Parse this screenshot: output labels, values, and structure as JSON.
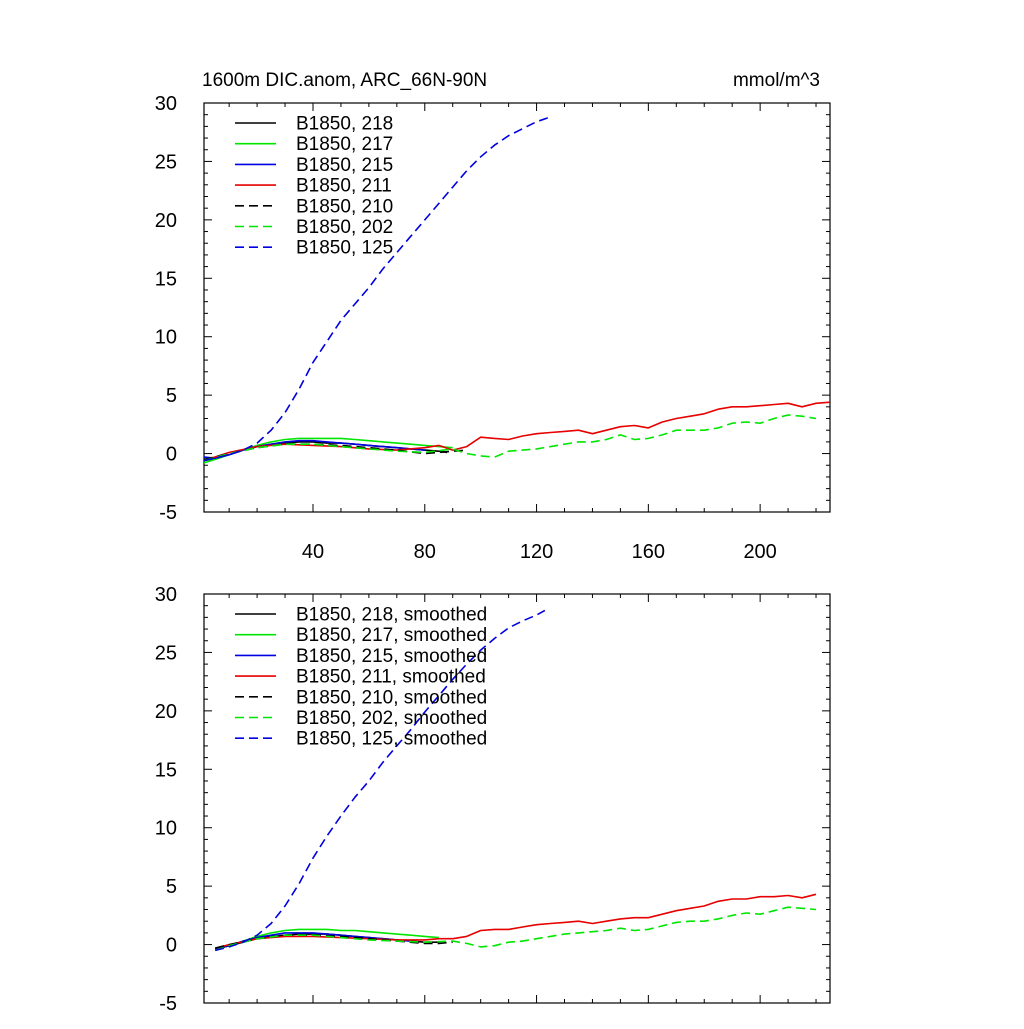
{
  "header": {
    "title": "1600m DIC.anom, ARC_66N-90N",
    "units": "mmol/m^3"
  },
  "styles": {
    "colors": {
      "black": "#000000",
      "green": "#00e600",
      "blue": "#0000e0",
      "red": "#e60000"
    }
  },
  "chart_data": [
    {
      "type": "line",
      "panel": "top",
      "xlim": [
        1,
        225
      ],
      "ylim": [
        -5,
        30
      ],
      "yticks": [
        -5,
        0,
        5,
        10,
        15,
        20,
        25,
        30
      ],
      "ytick_labels": [
        "-5",
        "0",
        "5",
        "10",
        "15",
        "20",
        "25",
        "30"
      ],
      "xticks": [
        40,
        80,
        120,
        160,
        200
      ],
      "xtick_labels": [
        "40",
        "80",
        "120",
        "160",
        "200"
      ],
      "legend_position": "top-left",
      "series": [
        {
          "name": "B1850, 218",
          "color": "#000000",
          "dash": "solid",
          "x": [
            1,
            5,
            10,
            15,
            20,
            25,
            30,
            35,
            40,
            45,
            50,
            55,
            60,
            65,
            70,
            75,
            80,
            85,
            88
          ],
          "y": [
            -0.6,
            -0.4,
            -0.1,
            0.3,
            0.6,
            0.8,
            0.9,
            1.0,
            1.0,
            0.9,
            0.9,
            0.8,
            0.7,
            0.6,
            0.5,
            0.4,
            0.3,
            0.2,
            0.1
          ]
        },
        {
          "name": "B1850, 217",
          "color": "#00e600",
          "dash": "solid",
          "x": [
            1,
            5,
            10,
            15,
            20,
            25,
            30,
            35,
            40,
            45,
            50,
            55,
            60,
            65,
            70,
            75,
            80,
            85,
            90
          ],
          "y": [
            -0.8,
            -0.5,
            -0.1,
            0.3,
            0.7,
            1.0,
            1.2,
            1.3,
            1.3,
            1.3,
            1.3,
            1.2,
            1.1,
            1.0,
            0.9,
            0.8,
            0.7,
            0.6,
            0.5
          ]
        },
        {
          "name": "B1850, 215",
          "color": "#0000e0",
          "dash": "solid",
          "x": [
            1,
            5,
            10,
            15,
            20,
            25,
            30,
            35,
            40,
            45,
            50,
            55,
            60,
            65,
            70,
            75,
            80
          ],
          "y": [
            -0.3,
            -0.4,
            -0.1,
            0.3,
            0.6,
            0.8,
            1.0,
            1.1,
            1.1,
            1.0,
            0.9,
            0.8,
            0.7,
            0.6,
            0.5,
            0.4,
            0.3
          ]
        },
        {
          "name": "B1850, 211",
          "color": "#e60000",
          "dash": "solid",
          "x": [
            1,
            10,
            20,
            30,
            40,
            50,
            60,
            70,
            80,
            85,
            90,
            95,
            100,
            105,
            110,
            115,
            120,
            125,
            130,
            135,
            140,
            145,
            150,
            155,
            160,
            165,
            170,
            175,
            180,
            185,
            190,
            195,
            200,
            205,
            210,
            215,
            220,
            225
          ],
          "y": [
            -0.6,
            0.1,
            0.6,
            0.8,
            0.7,
            0.6,
            0.4,
            0.3,
            0.5,
            0.7,
            0.3,
            0.6,
            1.4,
            1.3,
            1.2,
            1.5,
            1.7,
            1.8,
            1.9,
            2.0,
            1.7,
            2.0,
            2.3,
            2.4,
            2.2,
            2.7,
            3.0,
            3.2,
            3.4,
            3.8,
            4.0,
            4.0,
            4.1,
            4.2,
            4.3,
            4.0,
            4.3,
            4.4
          ]
        },
        {
          "name": "B1850, 210",
          "color": "#000000",
          "dash": "dashed",
          "x": [
            1,
            10,
            20,
            30,
            40,
            50,
            60,
            70,
            80,
            85,
            90,
            95
          ],
          "y": [
            -0.5,
            0.0,
            0.5,
            0.8,
            0.8,
            0.7,
            0.5,
            0.3,
            0.0,
            0.1,
            0.2,
            0.3
          ]
        },
        {
          "name": "B1850, 202",
          "color": "#00e600",
          "dash": "dashed",
          "x": [
            1,
            10,
            20,
            30,
            40,
            50,
            60,
            70,
            80,
            90,
            95,
            100,
            105,
            110,
            115,
            120,
            125,
            130,
            135,
            140,
            145,
            150,
            155,
            160,
            165,
            170,
            175,
            180,
            185,
            190,
            195,
            200,
            205,
            210,
            215,
            220
          ],
          "y": [
            -0.6,
            0.0,
            0.5,
            0.8,
            0.8,
            0.6,
            0.4,
            0.2,
            0.1,
            0.4,
            0.0,
            -0.2,
            -0.3,
            0.2,
            0.3,
            0.4,
            0.6,
            0.8,
            1.0,
            1.0,
            1.2,
            1.6,
            1.2,
            1.3,
            1.6,
            2.0,
            2.0,
            2.0,
            2.2,
            2.6,
            2.7,
            2.6,
            3.0,
            3.3,
            3.2,
            3.0
          ]
        },
        {
          "name": "B1850, 125",
          "color": "#0000e0",
          "dash": "dashed",
          "x": [
            1,
            5,
            10,
            15,
            20,
            25,
            30,
            35,
            40,
            45,
            50,
            55,
            60,
            65,
            70,
            75,
            80,
            85,
            90,
            95,
            100,
            105,
            110,
            115,
            120,
            125
          ],
          "y": [
            -0.6,
            -0.4,
            -0.1,
            0.3,
            0.9,
            2.0,
            3.5,
            5.5,
            7.8,
            9.6,
            11.4,
            12.8,
            14.2,
            15.8,
            17.2,
            18.6,
            20.0,
            21.4,
            22.8,
            24.2,
            25.4,
            26.4,
            27.2,
            27.8,
            28.4,
            28.8
          ]
        }
      ]
    },
    {
      "type": "line",
      "panel": "bottom",
      "xlim": [
        1,
        225
      ],
      "ylim": [
        -5,
        30
      ],
      "yticks": [
        -5,
        0,
        5,
        10,
        15,
        20,
        25,
        30
      ],
      "ytick_labels": [
        "-5",
        "0",
        "5",
        "10",
        "15",
        "20",
        "25",
        "30"
      ],
      "xticks": [
        40,
        80,
        120,
        160,
        200
      ],
      "legend_position": "top-left",
      "series": [
        {
          "name": "B1850, 218, smoothed",
          "color": "#000000",
          "dash": "solid",
          "x": [
            5,
            10,
            15,
            20,
            25,
            30,
            35,
            40,
            45,
            50,
            55,
            60,
            65,
            70,
            75,
            80,
            85
          ],
          "y": [
            -0.4,
            -0.1,
            0.2,
            0.5,
            0.7,
            0.8,
            0.9,
            0.9,
            0.9,
            0.8,
            0.7,
            0.6,
            0.5,
            0.4,
            0.3,
            0.2,
            0.2
          ]
        },
        {
          "name": "B1850, 217, smoothed",
          "color": "#00e600",
          "dash": "solid",
          "x": [
            5,
            10,
            15,
            20,
            25,
            30,
            35,
            40,
            45,
            50,
            55,
            60,
            65,
            70,
            75,
            80,
            85
          ],
          "y": [
            -0.4,
            -0.1,
            0.3,
            0.7,
            1.0,
            1.2,
            1.3,
            1.3,
            1.3,
            1.2,
            1.2,
            1.1,
            1.0,
            0.9,
            0.8,
            0.7,
            0.6
          ]
        },
        {
          "name": "B1850, 215, smoothed",
          "color": "#0000e0",
          "dash": "solid",
          "x": [
            5,
            10,
            15,
            20,
            25,
            30,
            35,
            40,
            45,
            50,
            55,
            60,
            65,
            70,
            75
          ],
          "y": [
            -0.4,
            -0.1,
            0.3,
            0.6,
            0.8,
            1.0,
            1.0,
            1.0,
            0.9,
            0.8,
            0.7,
            0.6,
            0.5,
            0.4,
            0.3
          ]
        },
        {
          "name": "B1850, 211, smoothed",
          "color": "#e60000",
          "dash": "solid",
          "x": [
            5,
            10,
            20,
            30,
            40,
            50,
            60,
            70,
            80,
            85,
            90,
            95,
            100,
            105,
            110,
            115,
            120,
            125,
            130,
            135,
            140,
            145,
            150,
            155,
            160,
            165,
            170,
            175,
            180,
            185,
            190,
            195,
            200,
            205,
            210,
            215,
            220
          ],
          "y": [
            -0.3,
            0.0,
            0.5,
            0.7,
            0.7,
            0.6,
            0.5,
            0.4,
            0.4,
            0.5,
            0.5,
            0.7,
            1.2,
            1.3,
            1.3,
            1.5,
            1.7,
            1.8,
            1.9,
            2.0,
            1.8,
            2.0,
            2.2,
            2.3,
            2.3,
            2.6,
            2.9,
            3.1,
            3.3,
            3.7,
            3.9,
            3.9,
            4.1,
            4.1,
            4.2,
            4.0,
            4.3
          ]
        },
        {
          "name": "B1850, 210, smoothed",
          "color": "#000000",
          "dash": "dashed",
          "x": [
            5,
            10,
            20,
            30,
            40,
            50,
            60,
            70,
            80,
            85,
            90
          ],
          "y": [
            -0.3,
            0.0,
            0.5,
            0.8,
            0.8,
            0.7,
            0.5,
            0.3,
            0.1,
            0.1,
            0.2
          ]
        },
        {
          "name": "B1850, 202, smoothed",
          "color": "#00e600",
          "dash": "dashed",
          "x": [
            5,
            10,
            20,
            30,
            40,
            50,
            60,
            70,
            80,
            90,
            95,
            100,
            105,
            110,
            115,
            120,
            125,
            130,
            135,
            140,
            145,
            150,
            155,
            160,
            165,
            170,
            175,
            180,
            185,
            190,
            195,
            200,
            205,
            210,
            215,
            220
          ],
          "y": [
            -0.5,
            -0.1,
            0.5,
            0.8,
            0.8,
            0.6,
            0.4,
            0.3,
            0.2,
            0.3,
            0.1,
            -0.2,
            -0.1,
            0.2,
            0.3,
            0.5,
            0.7,
            0.9,
            1.0,
            1.1,
            1.2,
            1.4,
            1.2,
            1.3,
            1.6,
            1.9,
            2.0,
            2.0,
            2.2,
            2.5,
            2.7,
            2.6,
            2.9,
            3.2,
            3.1,
            3.0
          ]
        },
        {
          "name": "B1850, 125, smoothed",
          "color": "#0000e0",
          "dash": "dashed",
          "x": [
            5,
            10,
            15,
            20,
            25,
            30,
            35,
            40,
            45,
            50,
            55,
            60,
            65,
            70,
            75,
            80,
            85,
            90,
            95,
            100,
            105,
            110,
            115,
            120,
            123
          ],
          "y": [
            -0.5,
            -0.2,
            0.2,
            0.8,
            1.8,
            3.3,
            5.2,
            7.4,
            9.3,
            11.0,
            12.6,
            14.0,
            15.6,
            17.0,
            18.4,
            19.9,
            21.3,
            22.7,
            24.0,
            25.2,
            26.2,
            27.1,
            27.7,
            28.2,
            28.6
          ]
        }
      ]
    }
  ]
}
